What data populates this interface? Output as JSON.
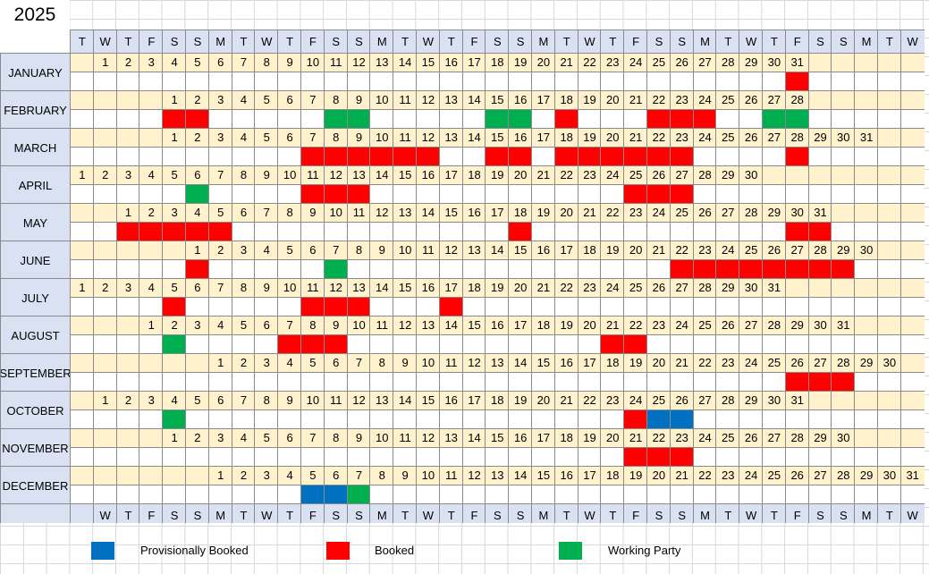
{
  "year": "2025",
  "weekday_header": [
    "T",
    "W",
    "T",
    "F",
    "S",
    "S",
    "M",
    "T",
    "W",
    "T",
    "F",
    "S",
    "S",
    "M",
    "T",
    "W",
    "T",
    "F",
    "S",
    "S",
    "M",
    "T",
    "W",
    "T",
    "F",
    "S",
    "S",
    "M",
    "T",
    "W",
    "T",
    "F",
    "S",
    "S",
    "M",
    "T",
    "W"
  ],
  "weekday_footer": [
    "",
    "W",
    "T",
    "F",
    "S",
    "S",
    "M",
    "T",
    "W",
    "T",
    "F",
    "S",
    "S",
    "M",
    "T",
    "W",
    "T",
    "F",
    "S",
    "S",
    "M",
    "T",
    "W",
    "T",
    "F",
    "S",
    "S",
    "M",
    "T",
    "W",
    "T",
    "F",
    "S",
    "S",
    "M",
    "T",
    "W"
  ],
  "colors": {
    "booked": "#ff0000",
    "working_party": "#00b050",
    "provisionally_booked": "#0070c0",
    "header_bg": "#d9e1f2",
    "date_row_bg": "#fff2cc"
  },
  "months": [
    {
      "name": "JANUARY",
      "days": 31,
      "start_col": 1,
      "booked": [
        31
      ],
      "working_party": [],
      "provisional": []
    },
    {
      "name": "FEBRUARY",
      "days": 28,
      "start_col": 4,
      "booked": [
        1,
        2,
        18,
        22,
        23,
        24
      ],
      "working_party": [
        8,
        9,
        15,
        16,
        27,
        28
      ],
      "provisional": []
    },
    {
      "name": "MARCH",
      "days": 31,
      "start_col": 4,
      "booked": [
        7,
        8,
        9,
        10,
        11,
        12,
        15,
        16,
        18,
        19,
        20,
        21,
        22,
        23,
        28
      ],
      "working_party": [],
      "provisional": []
    },
    {
      "name": "APRIL",
      "days": 30,
      "start_col": 0,
      "booked": [
        11,
        12,
        13,
        25,
        26,
        27
      ],
      "working_party": [
        6
      ],
      "provisional": []
    },
    {
      "name": "MAY",
      "days": 31,
      "start_col": 2,
      "booked": [
        1,
        2,
        3,
        4,
        5,
        18,
        30,
        31
      ],
      "working_party": [],
      "provisional": []
    },
    {
      "name": "JUNE",
      "days": 30,
      "start_col": 5,
      "booked": [
        1,
        22,
        23,
        24,
        25,
        26,
        27,
        28,
        29
      ],
      "working_party": [
        7
      ],
      "provisional": []
    },
    {
      "name": "JULY",
      "days": 31,
      "start_col": 0,
      "booked": [
        5,
        11,
        12,
        13,
        17
      ],
      "working_party": [],
      "provisional": []
    },
    {
      "name": "AUGUST",
      "days": 31,
      "start_col": 3,
      "booked": [
        7,
        8,
        9,
        21,
        22
      ],
      "working_party": [
        2
      ],
      "provisional": []
    },
    {
      "name": "SEPTEMBER",
      "days": 30,
      "start_col": 6,
      "booked": [
        26,
        27,
        28
      ],
      "working_party": [],
      "provisional": []
    },
    {
      "name": "OCTOBER",
      "days": 31,
      "start_col": 1,
      "booked": [
        24
      ],
      "working_party": [
        4
      ],
      "provisional": [
        25,
        26
      ]
    },
    {
      "name": "NOVEMBER",
      "days": 30,
      "start_col": 4,
      "booked": [
        21,
        22,
        23
      ],
      "working_party": [],
      "provisional": []
    },
    {
      "name": "DECEMBER",
      "days": 31,
      "start_col": 6,
      "booked": [],
      "working_party": [
        7
      ],
      "provisional": [
        5,
        6
      ]
    }
  ],
  "legend": {
    "provisional_label": "Provisionally Booked",
    "booked_label": "Booked",
    "working_party_label": "Working Party"
  }
}
